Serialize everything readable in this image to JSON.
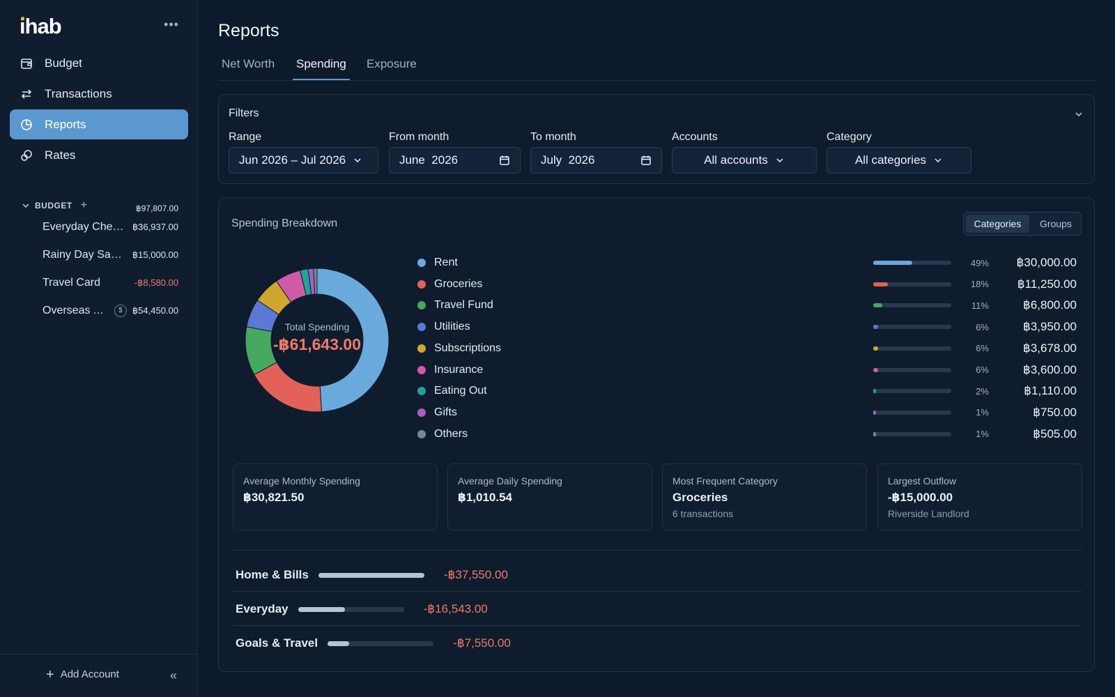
{
  "app": {
    "logo_text": "ihab"
  },
  "nav": {
    "items": [
      {
        "label": "Budget",
        "icon": "wallet-icon"
      },
      {
        "label": "Transactions",
        "icon": "arrows-exchange-icon"
      },
      {
        "label": "Reports",
        "icon": "pie-chart-icon",
        "active": true
      },
      {
        "label": "Rates",
        "icon": "currency-exchange-icon"
      }
    ]
  },
  "budget": {
    "heading": "BUDGET",
    "total": "฿97,807.00",
    "accounts": [
      {
        "name": "Everyday Checking",
        "balance": "฿36,937.00"
      },
      {
        "name": "Rainy Day Savings",
        "balance": "฿15,000.00"
      },
      {
        "name": "Travel Card",
        "balance": "-฿8,580.00",
        "negative": true
      },
      {
        "name": "Overseas Account",
        "balance": "฿54,450.00",
        "currency_badge": "$"
      }
    ]
  },
  "sidebar_footer": {
    "add_account": "Add Account"
  },
  "page": {
    "title": "Reports",
    "tabs": [
      "Net Worth",
      "Spending",
      "Exposure"
    ],
    "active_tab": "Spending"
  },
  "filters": {
    "title": "Filters",
    "range_label": "Range",
    "range_value": "Jun 2026 – Jul 2026",
    "from_label": "From month",
    "from_value": "June  2026",
    "to_label": "To month",
    "to_value": "July  2026",
    "accounts_label": "Accounts",
    "accounts_value": "All accounts",
    "category_label": "Category",
    "category_value": "All categories"
  },
  "breakdown": {
    "title": "Spending Breakdown",
    "toggle": [
      "Categories",
      "Groups"
    ],
    "active_toggle": "Categories",
    "total_label": "Total Spending",
    "total_value": "-฿61,643.00",
    "categories": [
      {
        "name": "Rent",
        "pct": "49%",
        "amount": "฿30,000.00",
        "share": 0.49,
        "color": "#6aa9dc"
      },
      {
        "name": "Groceries",
        "pct": "18%",
        "amount": "฿11,250.00",
        "share": 0.18,
        "color": "#e2625a"
      },
      {
        "name": "Travel Fund",
        "pct": "11%",
        "amount": "฿6,800.00",
        "share": 0.11,
        "color": "#47a860"
      },
      {
        "name": "Utilities",
        "pct": "6%",
        "amount": "฿3,950.00",
        "share": 0.064,
        "color": "#5b79d4"
      },
      {
        "name": "Subscriptions",
        "pct": "6%",
        "amount": "฿3,678.00",
        "share": 0.06,
        "color": "#cfa72e"
      },
      {
        "name": "Insurance",
        "pct": "6%",
        "amount": "฿3,600.00",
        "share": 0.058,
        "color": "#cf5ba8"
      },
      {
        "name": "Eating Out",
        "pct": "2%",
        "amount": "฿1,110.00",
        "share": 0.018,
        "color": "#1fa59a"
      },
      {
        "name": "Gifts",
        "pct": "1%",
        "amount": "฿750.00",
        "share": 0.012,
        "color": "#a65fc4"
      },
      {
        "name": "Others",
        "pct": "1%",
        "amount": "฿505.00",
        "share": 0.008,
        "color": "#7b8796"
      }
    ]
  },
  "stats": [
    {
      "label": "Average Monthly Spending",
      "value": "฿30,821.50",
      "sub": ""
    },
    {
      "label": "Average Daily Spending",
      "value": "฿1,010.54",
      "sub": ""
    },
    {
      "label": "Most Frequent Category",
      "value": "Groceries",
      "sub": "6 transactions"
    },
    {
      "label": "Largest Outflow",
      "value": "-฿15,000.00",
      "sub": "Riverside Landlord"
    }
  ],
  "groups": [
    {
      "name": "Home & Bills",
      "amount": "-฿37,550.00",
      "share": 1.0
    },
    {
      "name": "Everyday",
      "amount": "-฿16,543.00",
      "share": 0.44
    },
    {
      "name": "Goals & Travel",
      "amount": "-฿7,550.00",
      "share": 0.2
    }
  ]
}
